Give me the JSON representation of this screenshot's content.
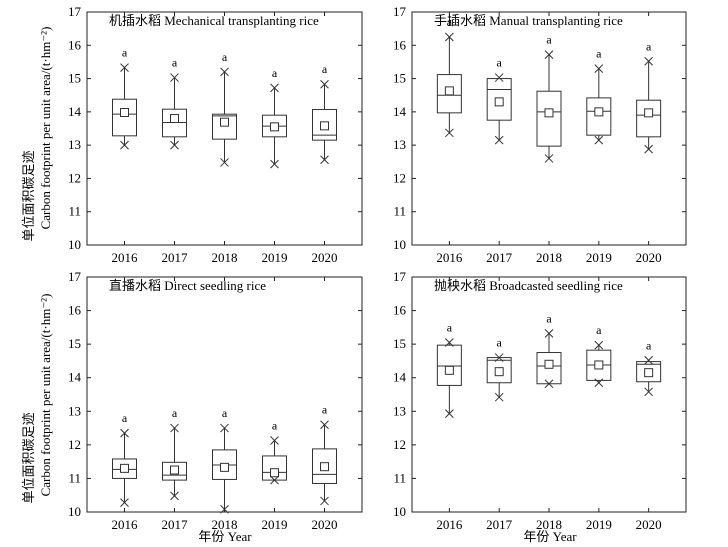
{
  "figure": {
    "ylabel_cn": "单位面积碳足迹",
    "ylabel_en": "Carbon footprint per unit area/(t·hm⁻²)",
    "xlabel": "年份 Year"
  },
  "chart_data": [
    {
      "type": "box",
      "title": "机插水稻 Mechanical transplanting rice",
      "categories": [
        "2016",
        "2017",
        "2018",
        "2019",
        "2020"
      ],
      "ylim": [
        10,
        17
      ],
      "yticks": [
        "10",
        "11",
        "12",
        "13",
        "14",
        "15",
        "16",
        "17"
      ],
      "boxes": [
        {
          "q1": 13.28,
          "median": 13.93,
          "q3": 14.38,
          "mean": 13.98,
          "min": 13.0,
          "max": 15.33,
          "label": "a"
        },
        {
          "q1": 13.25,
          "median": 13.68,
          "q3": 14.08,
          "mean": 13.8,
          "min": 13.0,
          "max": 15.03,
          "label": "a"
        },
        {
          "q1": 13.18,
          "median": 13.88,
          "q3": 13.93,
          "mean": 13.69,
          "min": 12.48,
          "max": 15.2,
          "label": "a"
        },
        {
          "q1": 13.25,
          "median": 13.57,
          "q3": 13.9,
          "mean": 13.55,
          "min": 12.43,
          "max": 14.72,
          "label": "a"
        },
        {
          "q1": 13.15,
          "median": 13.3,
          "q3": 14.07,
          "mean": 13.58,
          "min": 12.56,
          "max": 14.83,
          "label": "a"
        }
      ]
    },
    {
      "type": "box",
      "title": "手插水稻 Manual transplanting rice",
      "categories": [
        "2016",
        "2017",
        "2018",
        "2019",
        "2020"
      ],
      "ylim": [
        10,
        17
      ],
      "yticks": [
        "10",
        "11",
        "12",
        "13",
        "14",
        "15",
        "16",
        "17"
      ],
      "boxes": [
        {
          "q1": 13.97,
          "median": 14.5,
          "q3": 15.12,
          "mean": 14.63,
          "min": 13.37,
          "max": 16.25,
          "label": "a"
        },
        {
          "q1": 13.75,
          "median": 14.67,
          "q3": 15.0,
          "mean": 14.3,
          "min": 13.15,
          "max": 15.03,
          "label": "a"
        },
        {
          "q1": 12.97,
          "median": 14.0,
          "q3": 14.62,
          "mean": 13.97,
          "min": 12.6,
          "max": 15.72,
          "label": "a"
        },
        {
          "q1": 13.3,
          "median": 14.02,
          "q3": 14.42,
          "mean": 14.0,
          "min": 13.15,
          "max": 15.3,
          "label": "a"
        },
        {
          "q1": 13.25,
          "median": 13.9,
          "q3": 14.35,
          "mean": 13.97,
          "min": 12.88,
          "max": 15.52,
          "label": "a"
        }
      ]
    },
    {
      "type": "box",
      "title": "直播水稻 Direct seedling rice",
      "categories": [
        "2016",
        "2017",
        "2018",
        "2019",
        "2020"
      ],
      "ylim": [
        10,
        17
      ],
      "yticks": [
        "10",
        "11",
        "12",
        "13",
        "14",
        "15",
        "16",
        "17"
      ],
      "boxes": [
        {
          "q1": 11.0,
          "median": 11.27,
          "q3": 11.58,
          "mean": 11.3,
          "min": 10.28,
          "max": 12.35,
          "label": "a"
        },
        {
          "q1": 10.95,
          "median": 11.1,
          "q3": 11.48,
          "mean": 11.25,
          "min": 10.48,
          "max": 12.5,
          "label": "a"
        },
        {
          "q1": 10.97,
          "median": 11.4,
          "q3": 11.85,
          "mean": 11.33,
          "min": 10.08,
          "max": 12.5,
          "label": "a"
        },
        {
          "q1": 10.95,
          "median": 11.18,
          "q3": 11.67,
          "mean": 11.17,
          "min": 10.95,
          "max": 12.13,
          "label": "a"
        },
        {
          "q1": 10.85,
          "median": 11.12,
          "q3": 11.88,
          "mean": 11.35,
          "min": 10.33,
          "max": 12.6,
          "label": "a"
        }
      ]
    },
    {
      "type": "box",
      "title": "抛秧水稻 Broadcasted seedling rice",
      "categories": [
        "2016",
        "2017",
        "2018",
        "2019",
        "2020"
      ],
      "ylim": [
        10,
        17
      ],
      "yticks": [
        "10",
        "11",
        "12",
        "13",
        "14",
        "15",
        "16",
        "17"
      ],
      "boxes": [
        {
          "q1": 13.77,
          "median": 14.35,
          "q3": 14.97,
          "mean": 14.22,
          "min": 12.93,
          "max": 15.05,
          "label": "a"
        },
        {
          "q1": 13.85,
          "median": 14.52,
          "q3": 14.6,
          "mean": 14.18,
          "min": 13.42,
          "max": 14.6,
          "label": "a"
        },
        {
          "q1": 13.82,
          "median": 14.35,
          "q3": 14.75,
          "mean": 14.4,
          "min": 13.82,
          "max": 15.32,
          "label": "a"
        },
        {
          "q1": 13.92,
          "median": 14.38,
          "q3": 14.82,
          "mean": 14.38,
          "min": 13.85,
          "max": 14.97,
          "label": "a"
        },
        {
          "q1": 13.88,
          "median": 14.4,
          "q3": 14.48,
          "mean": 14.15,
          "min": 13.58,
          "max": 14.52,
          "label": "a"
        }
      ]
    }
  ]
}
